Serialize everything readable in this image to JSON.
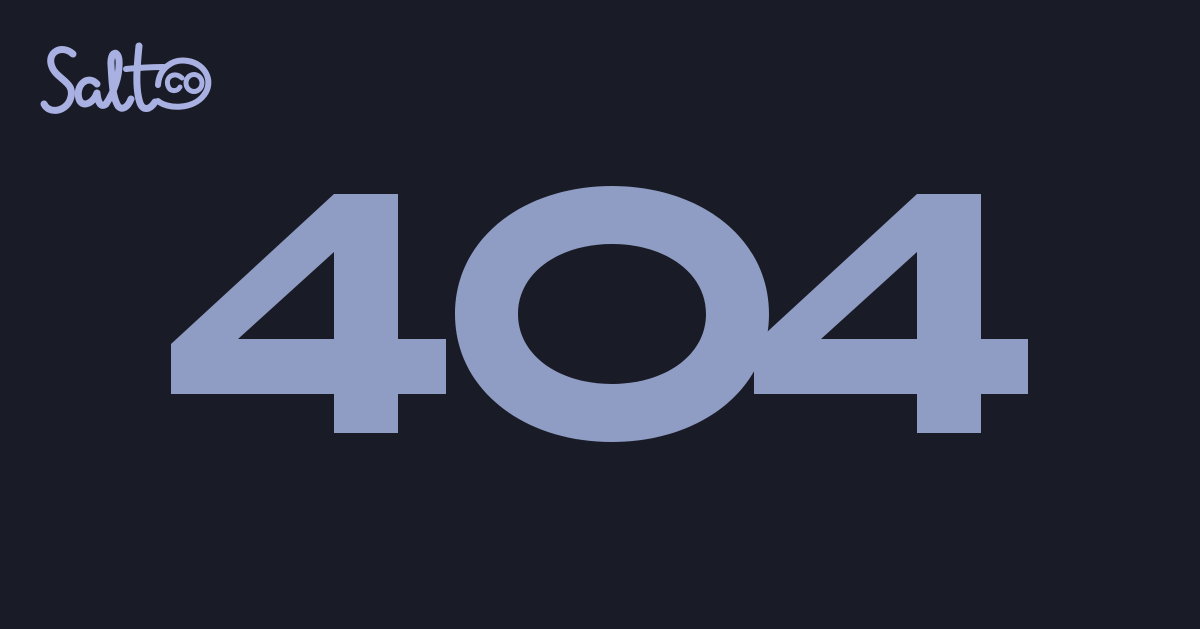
{
  "brand": {
    "logo_text": "Saltco",
    "logo_color": "#a8b1e2"
  },
  "main": {
    "error_code": "404",
    "error_color": "#8f9cc3"
  },
  "page": {
    "background": "#191b26"
  }
}
